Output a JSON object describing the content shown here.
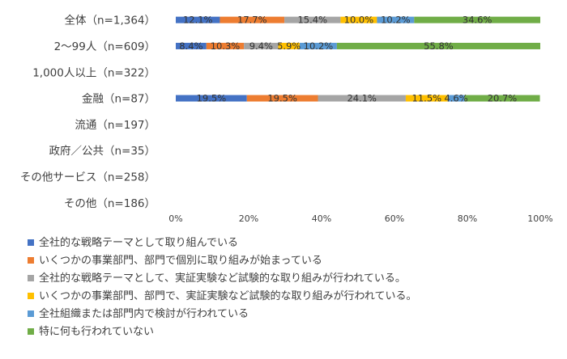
{
  "chart_data": {
    "type": "bar",
    "orientation": "horizontal",
    "stacked": true,
    "categories": [
      "全体（n=1,364）",
      "2〜99人（n=609）",
      "1,000人以上（n=322）",
      "金融（n=87）",
      "流通（n=197）",
      "政府／公共（n=35）",
      "その他サービス（n=258）",
      "その他（n=186）"
    ],
    "series": [
      {
        "name": "全社的な戦略テーマとして取り組んでいる",
        "color": "#4472C4",
        "values": [
          12.1,
          8.4,
          null,
          19.5,
          null,
          null,
          null,
          null
        ],
        "labels": [
          "12.1%",
          "8.4%",
          "",
          "19.5%",
          "",
          "",
          "",
          ""
        ]
      },
      {
        "name": "いくつかの事業部門、部門で個別に取り組みが始まっている",
        "color": "#ED7D31",
        "values": [
          17.7,
          10.3,
          null,
          19.5,
          null,
          null,
          null,
          null
        ],
        "labels": [
          "17.7%",
          "10.3%",
          "",
          "19.5%",
          "",
          "",
          "",
          ""
        ]
      },
      {
        "name": "全社的な戦略テーマとして、実証実験など試験的な取り組みが行われている。",
        "color": "#A5A5A5",
        "values": [
          15.4,
          9.4,
          null,
          24.1,
          null,
          null,
          null,
          null
        ],
        "labels": [
          "15.4%",
          "9.4%",
          "",
          "24.1%",
          "",
          "",
          "",
          ""
        ]
      },
      {
        "name": "いくつかの事業部門、部門で、実証実験など試験的な取り組みが行われている。",
        "color": "#FFC000",
        "values": [
          10.0,
          5.9,
          null,
          11.5,
          null,
          null,
          null,
          null
        ],
        "labels": [
          "10.0%",
          "5.9%",
          "",
          "11.5%",
          "",
          "",
          "",
          ""
        ]
      },
      {
        "name": "全社組織または部門内で検討が行われている",
        "color": "#5B9BD5",
        "values": [
          10.2,
          10.2,
          null,
          4.6,
          null,
          null,
          null,
          null
        ],
        "labels": [
          "10.2%",
          "10.2%",
          "",
          "4.6%",
          "",
          "",
          "",
          ""
        ]
      },
      {
        "name": "特に何も行われていない",
        "color": "#70AD47",
        "values": [
          34.6,
          55.8,
          null,
          20.7,
          null,
          null,
          null,
          null
        ],
        "labels": [
          "34.6%",
          "55.8%",
          "",
          "20.7%",
          "",
          "",
          "",
          ""
        ]
      }
    ],
    "xlim": [
      0,
      100
    ],
    "xticks": [
      "0%",
      "20%",
      "40%",
      "60%",
      "80%",
      "100%"
    ],
    "grid": false,
    "legend_position": "bottom"
  }
}
